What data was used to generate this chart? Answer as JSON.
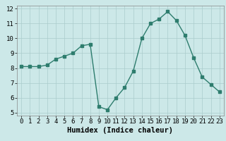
{
  "x": [
    0,
    1,
    2,
    3,
    4,
    5,
    6,
    7,
    8,
    9,
    10,
    11,
    12,
    13,
    14,
    15,
    16,
    17,
    18,
    19,
    20,
    21,
    22,
    23
  ],
  "y": [
    8.1,
    8.1,
    8.1,
    8.2,
    8.6,
    8.8,
    9.0,
    9.5,
    9.6,
    5.4,
    5.2,
    6.0,
    6.7,
    7.8,
    10.0,
    11.0,
    11.3,
    11.8,
    11.2,
    10.2,
    8.7,
    7.4,
    6.9,
    6.4
  ],
  "xlabel": "Humidex (Indice chaleur)",
  "xlim": [
    -0.5,
    23.5
  ],
  "ylim": [
    4.8,
    12.2
  ],
  "yticks": [
    5,
    6,
    7,
    8,
    9,
    10,
    11,
    12
  ],
  "xticks": [
    0,
    1,
    2,
    3,
    4,
    5,
    6,
    7,
    8,
    9,
    10,
    11,
    12,
    13,
    14,
    15,
    16,
    17,
    18,
    19,
    20,
    21,
    22,
    23
  ],
  "line_color": "#2e7d6e",
  "marker": "s",
  "marker_size": 2.5,
  "bg_color": "#cce8e8",
  "grid_color": "#aacccc",
  "line_width": 1.0,
  "xlabel_fontsize": 7.5,
  "tick_fontsize": 6.5
}
